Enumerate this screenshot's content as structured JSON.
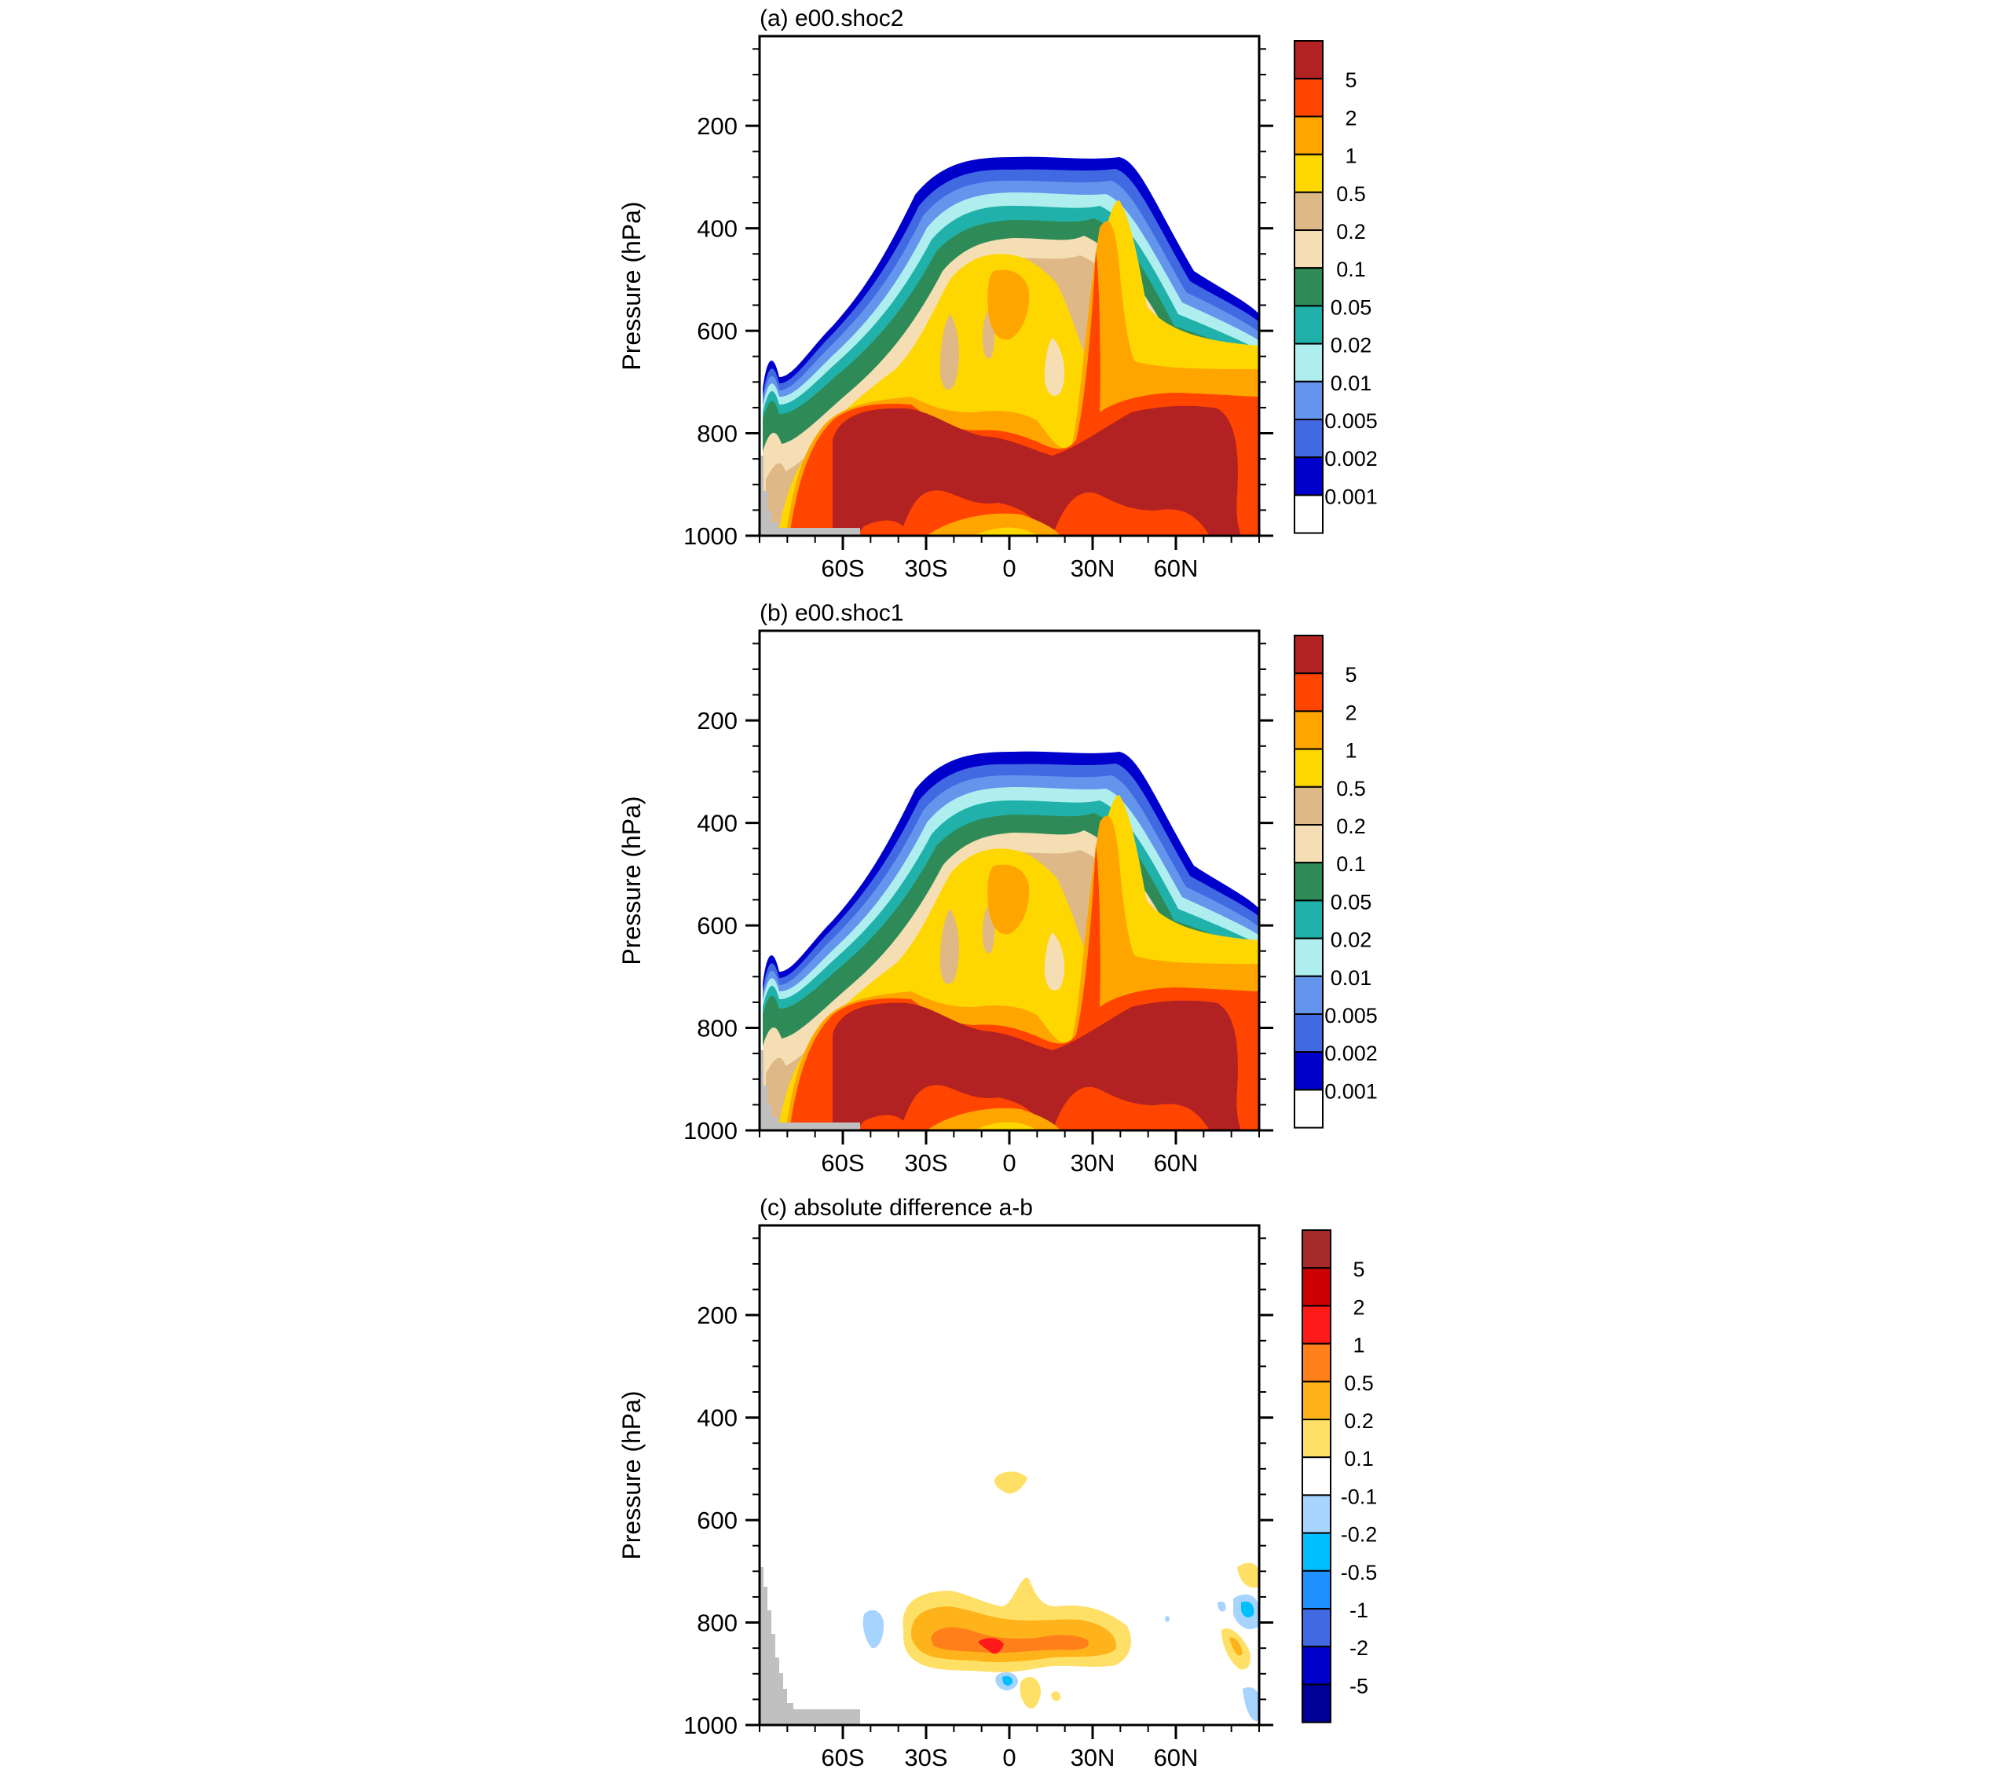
{
  "chart_data": [
    {
      "type": "contour",
      "title": "(a) e00.shoc2",
      "ylabel": "Pressure (hPa)",
      "xlabel": "",
      "y_ticks": [
        "200",
        "400",
        "600",
        "800",
        "1000"
      ],
      "y_tick_values": [
        200,
        400,
        600,
        800,
        1000
      ],
      "x_ticks": [
        "60S",
        "30S",
        "0",
        "30N",
        "60N"
      ],
      "x_tick_values": [
        -60,
        -30,
        0,
        30,
        60
      ],
      "xlim": [
        -90,
        90
      ],
      "ylim": [
        1000,
        25
      ],
      "colorbar": {
        "labels": [
          "5",
          "2",
          "1",
          "0.5",
          "0.2",
          "0.1",
          "0.05",
          "0.02",
          "0.01",
          "0.005",
          "0.002",
          "0.001"
        ],
        "colors": [
          "#b22222",
          "#ff4500",
          "#ffa500",
          "#ffd700",
          "#deb887",
          "#f5deb3",
          "#2e8b57",
          "#20b2aa",
          "#afeeee",
          "#6495ed",
          "#4169e1",
          "#0000cd",
          "#ffffff"
        ]
      },
      "terrain_color": "#c0c0c0"
    },
    {
      "type": "contour",
      "title": "(b) e00.shoc1",
      "ylabel": "Pressure (hPa)",
      "xlabel": "",
      "y_ticks": [
        "200",
        "400",
        "600",
        "800",
        "1000"
      ],
      "y_tick_values": [
        200,
        400,
        600,
        800,
        1000
      ],
      "x_ticks": [
        "60S",
        "30S",
        "0",
        "30N",
        "60N"
      ],
      "x_tick_values": [
        -60,
        -30,
        0,
        30,
        60
      ],
      "xlim": [
        -90,
        90
      ],
      "ylim": [
        1000,
        25
      ],
      "colorbar": {
        "labels": [
          "5",
          "2",
          "1",
          "0.5",
          "0.2",
          "0.1",
          "0.05",
          "0.02",
          "0.01",
          "0.005",
          "0.002",
          "0.001"
        ],
        "colors": [
          "#b22222",
          "#ff4500",
          "#ffa500",
          "#ffd700",
          "#deb887",
          "#f5deb3",
          "#2e8b57",
          "#20b2aa",
          "#afeeee",
          "#6495ed",
          "#4169e1",
          "#0000cd",
          "#ffffff"
        ]
      },
      "terrain_color": "#c0c0c0"
    },
    {
      "type": "contour",
      "title": "(c) absolute difference a-b",
      "ylabel": "Pressure (hPa)",
      "xlabel": "",
      "y_ticks": [
        "200",
        "400",
        "600",
        "800",
        "1000"
      ],
      "y_tick_values": [
        200,
        400,
        600,
        800,
        1000
      ],
      "x_ticks": [
        "60S",
        "30S",
        "0",
        "30N",
        "60N"
      ],
      "x_tick_values": [
        -60,
        -30,
        0,
        30,
        60
      ],
      "xlim": [
        -90,
        90
      ],
      "ylim": [
        1000,
        25
      ],
      "colorbar": {
        "labels": [
          "5",
          "2",
          "1",
          "0.5",
          "0.2",
          "0.1",
          "-0.1",
          "-0.2",
          "-0.5",
          "-1",
          "-2",
          "-5"
        ],
        "colors": [
          "#a52a2a",
          "#cc0000",
          "#ff1a1a",
          "#ff7f1a",
          "#ffb31a",
          "#ffe066",
          "#ffffff",
          "#a6d4ff",
          "#00bfff",
          "#1e90ff",
          "#4169e1",
          "#0000cd",
          "#000099"
        ]
      },
      "terrain_color": "#c0c0c0"
    }
  ]
}
